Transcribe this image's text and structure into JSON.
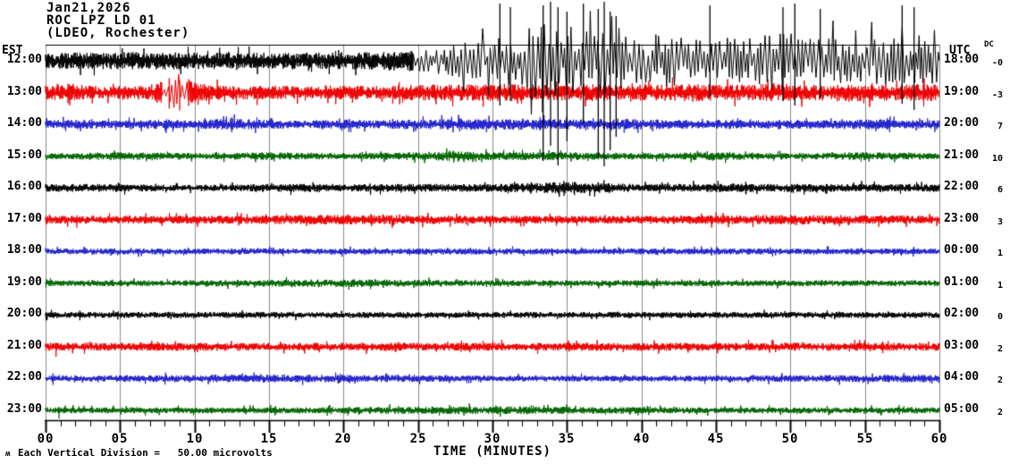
{
  "title": {
    "date": "Jan21,2026",
    "station": "ROC LPZ LD 01",
    "location": "(LDEO, Rochester)"
  },
  "axes": {
    "left_label": "EST",
    "right_label": "UTC",
    "dc_header": "DC",
    "x_label": "TIME (MINUTES)",
    "x_major_tick_labels": [
      "00",
      "05",
      "10",
      "15",
      "20",
      "25",
      "30",
      "35",
      "40",
      "45",
      "50",
      "55",
      "60"
    ],
    "x_minor_ticks_per_major": 5
  },
  "footer": {
    "wave_icon": "ʍ",
    "scale_note": "Each Vertical Division =   50.00 microvolts"
  },
  "colors": {
    "black": "#000000",
    "red": "#ee0000",
    "blue": "#2222cc",
    "green": "#006400",
    "grid": "#8a8a8a",
    "axis": "#000000",
    "background": "#ffffff"
  },
  "chart_data": {
    "type": "line",
    "title": "ROC LPZ LD 01 (LDEO, Rochester) Jan21,2026",
    "xlabel": "TIME (MINUTES)",
    "x_range_minutes": [
      0,
      60
    ],
    "minutes_per_row": 60,
    "vertical_division_note": "Each Vertical Division = 50.00 microvolts",
    "rows": [
      {
        "est": "12:00",
        "utc": "18:00",
        "dc": "-0",
        "color": "black",
        "envelope": [
          [
            0,
            8
          ],
          [
            8,
            9
          ],
          [
            15,
            8
          ],
          [
            22,
            9
          ],
          [
            24,
            10
          ],
          [
            25,
            13
          ],
          [
            26,
            13
          ],
          [
            27,
            15
          ],
          [
            28,
            18
          ],
          [
            29,
            21
          ],
          [
            30,
            25
          ],
          [
            31,
            28
          ],
          [
            32,
            32
          ],
          [
            33,
            38
          ],
          [
            34,
            40
          ],
          [
            35,
            36
          ],
          [
            36,
            33
          ],
          [
            37,
            38
          ],
          [
            38,
            40
          ],
          [
            39,
            28
          ],
          [
            40,
            25
          ],
          [
            41,
            27
          ],
          [
            42,
            29
          ],
          [
            43,
            25
          ],
          [
            44,
            23
          ],
          [
            45,
            26
          ],
          [
            46,
            25
          ],
          [
            47,
            23
          ],
          [
            48,
            27
          ],
          [
            49,
            30
          ],
          [
            50,
            31
          ],
          [
            51,
            27
          ],
          [
            52,
            24
          ],
          [
            53,
            25
          ],
          [
            54,
            22
          ],
          [
            55,
            23
          ],
          [
            56,
            25
          ],
          [
            57,
            23
          ],
          [
            58,
            25
          ],
          [
            59,
            27
          ],
          [
            60,
            28
          ]
        ],
        "spikes": [
          [
            30.5,
            64,
            50
          ],
          [
            31.2,
            60,
            45
          ],
          [
            33.4,
            62,
            112
          ],
          [
            33.9,
            66,
            95
          ],
          [
            34.4,
            60,
            117
          ],
          [
            35.0,
            55,
            90
          ],
          [
            36.1,
            64,
            70
          ],
          [
            37.1,
            58,
            108
          ],
          [
            37.5,
            66,
            118
          ],
          [
            37.9,
            55,
            100
          ],
          [
            38.3,
            50,
            85
          ],
          [
            44.6,
            62,
            40
          ],
          [
            49.5,
            60,
            45
          ],
          [
            50.3,
            64,
            50
          ],
          [
            52.0,
            58,
            42
          ],
          [
            57.5,
            62,
            48
          ],
          [
            58.3,
            60,
            55
          ]
        ]
      },
      {
        "est": "13:00",
        "utc": "19:00",
        "dc": "-3",
        "color": "red",
        "envelope": [
          [
            0,
            7
          ],
          [
            1,
            8
          ],
          [
            2,
            9
          ],
          [
            3,
            7
          ],
          [
            4,
            6
          ],
          [
            5,
            7
          ],
          [
            6,
            7
          ],
          [
            7,
            8
          ],
          [
            8,
            13
          ],
          [
            9,
            14
          ],
          [
            10,
            11
          ],
          [
            11,
            8
          ],
          [
            12,
            7
          ],
          [
            15,
            7
          ],
          [
            18,
            6
          ],
          [
            20,
            7
          ],
          [
            23,
            7
          ],
          [
            25,
            8
          ],
          [
            27,
            9
          ],
          [
            29,
            8
          ],
          [
            31,
            9
          ],
          [
            33,
            8
          ],
          [
            35,
            8
          ],
          [
            37,
            9
          ],
          [
            39,
            8
          ],
          [
            41,
            8
          ],
          [
            43,
            9
          ],
          [
            45,
            8
          ],
          [
            47,
            8
          ],
          [
            49,
            9
          ],
          [
            51,
            8
          ],
          [
            53,
            8
          ],
          [
            55,
            9
          ],
          [
            57,
            8
          ],
          [
            59,
            9
          ],
          [
            60,
            8
          ]
        ],
        "spikes": [
          [
            1.5,
            10,
            12
          ],
          [
            8.3,
            16,
            18
          ],
          [
            9.0,
            14,
            20
          ],
          [
            9.6,
            15,
            15
          ]
        ]
      },
      {
        "est": "14:00",
        "utc": "20:00",
        "dc": "7",
        "color": "blue",
        "envelope": [
          [
            0,
            4
          ],
          [
            2,
            5
          ],
          [
            4,
            4
          ],
          [
            6,
            4
          ],
          [
            8,
            5
          ],
          [
            10,
            4
          ],
          [
            12,
            6
          ],
          [
            14,
            5
          ],
          [
            16,
            4
          ],
          [
            18,
            4
          ],
          [
            20,
            5
          ],
          [
            22,
            4
          ],
          [
            24,
            5
          ],
          [
            26,
            5
          ],
          [
            28,
            6
          ],
          [
            30,
            5
          ],
          [
            32,
            6
          ],
          [
            34,
            5
          ],
          [
            36,
            5
          ],
          [
            38,
            6
          ],
          [
            40,
            5
          ],
          [
            42,
            5
          ],
          [
            44,
            4
          ],
          [
            46,
            5
          ],
          [
            48,
            4
          ],
          [
            50,
            5
          ],
          [
            52,
            4
          ],
          [
            54,
            5
          ],
          [
            56,
            5
          ],
          [
            58,
            4
          ],
          [
            60,
            5
          ]
        ],
        "spikes": [
          [
            12.5,
            8,
            9
          ],
          [
            27.8,
            7,
            8
          ],
          [
            33.2,
            8,
            7
          ],
          [
            56.5,
            7,
            6
          ]
        ]
      },
      {
        "est": "15:00",
        "utc": "21:00",
        "dc": "10",
        "color": "green",
        "envelope": [
          [
            0,
            3
          ],
          [
            5,
            4
          ],
          [
            10,
            3
          ],
          [
            15,
            4
          ],
          [
            20,
            3
          ],
          [
            25,
            4
          ],
          [
            27,
            5
          ],
          [
            30,
            4
          ],
          [
            35,
            4
          ],
          [
            40,
            3
          ],
          [
            45,
            4
          ],
          [
            50,
            3
          ],
          [
            55,
            4
          ],
          [
            60,
            3
          ]
        ],
        "spikes": [
          [
            27.4,
            6,
            7
          ]
        ]
      },
      {
        "est": "16:00",
        "utc": "22:00",
        "dc": "6",
        "color": "black",
        "envelope": [
          [
            0,
            4
          ],
          [
            5,
            4
          ],
          [
            10,
            3
          ],
          [
            15,
            4
          ],
          [
            20,
            4
          ],
          [
            25,
            4
          ],
          [
            30,
            4
          ],
          [
            33,
            5
          ],
          [
            35,
            6
          ],
          [
            37,
            5
          ],
          [
            40,
            4
          ],
          [
            44,
            4
          ],
          [
            46,
            5
          ],
          [
            48,
            4
          ],
          [
            52,
            4
          ],
          [
            56,
            4
          ],
          [
            60,
            4
          ]
        ],
        "spikes": [
          [
            34.8,
            8,
            9
          ],
          [
            35.5,
            7,
            8
          ],
          [
            47.0,
            7,
            6
          ]
        ]
      },
      {
        "est": "17:00",
        "utc": "23:00",
        "dc": "3",
        "color": "red",
        "envelope": [
          [
            0,
            4
          ],
          [
            10,
            4
          ],
          [
            20,
            5
          ],
          [
            30,
            4
          ],
          [
            40,
            4
          ],
          [
            50,
            5
          ],
          [
            60,
            4
          ]
        ],
        "spikes": [
          [
            2.1,
            5,
            9
          ]
        ]
      },
      {
        "est": "18:00",
        "utc": "00:00",
        "dc": "1",
        "color": "blue",
        "envelope": [
          [
            0,
            3
          ],
          [
            15,
            3
          ],
          [
            30,
            3
          ],
          [
            45,
            3
          ],
          [
            60,
            3
          ]
        ],
        "spikes": []
      },
      {
        "est": "19:00",
        "utc": "01:00",
        "dc": "1",
        "color": "green",
        "envelope": [
          [
            0,
            3
          ],
          [
            10,
            3
          ],
          [
            20,
            4
          ],
          [
            30,
            3
          ],
          [
            40,
            3
          ],
          [
            50,
            3
          ],
          [
            60,
            3
          ]
        ],
        "spikes": []
      },
      {
        "est": "20:00",
        "utc": "02:00",
        "dc": "0",
        "color": "black",
        "envelope": [
          [
            0,
            3
          ],
          [
            15,
            3
          ],
          [
            30,
            3
          ],
          [
            45,
            3
          ],
          [
            60,
            3
          ]
        ],
        "spikes": [
          [
            2.3,
            5,
            6
          ]
        ]
      },
      {
        "est": "21:00",
        "utc": "03:00",
        "dc": "2",
        "color": "red",
        "envelope": [
          [
            0,
            4
          ],
          [
            15,
            4
          ],
          [
            30,
            4
          ],
          [
            45,
            4
          ],
          [
            60,
            4
          ]
        ],
        "spikes": [
          [
            0.7,
            4,
            11
          ],
          [
            56.2,
            6,
            7
          ]
        ]
      },
      {
        "est": "22:00",
        "utc": "04:00",
        "dc": "2",
        "color": "blue",
        "envelope": [
          [
            0,
            3
          ],
          [
            15,
            4
          ],
          [
            30,
            3
          ],
          [
            45,
            3
          ],
          [
            60,
            4
          ]
        ],
        "spikes": [
          [
            0.5,
            6,
            7
          ]
        ]
      },
      {
        "est": "23:00",
        "utc": "05:00",
        "dc": "2",
        "color": "green",
        "envelope": [
          [
            0,
            3
          ],
          [
            15,
            3
          ],
          [
            30,
            4
          ],
          [
            45,
            3
          ],
          [
            60,
            3
          ]
        ],
        "spikes": [
          [
            0.9,
            4,
            9
          ],
          [
            57.3,
            6,
            5
          ]
        ]
      }
    ]
  }
}
